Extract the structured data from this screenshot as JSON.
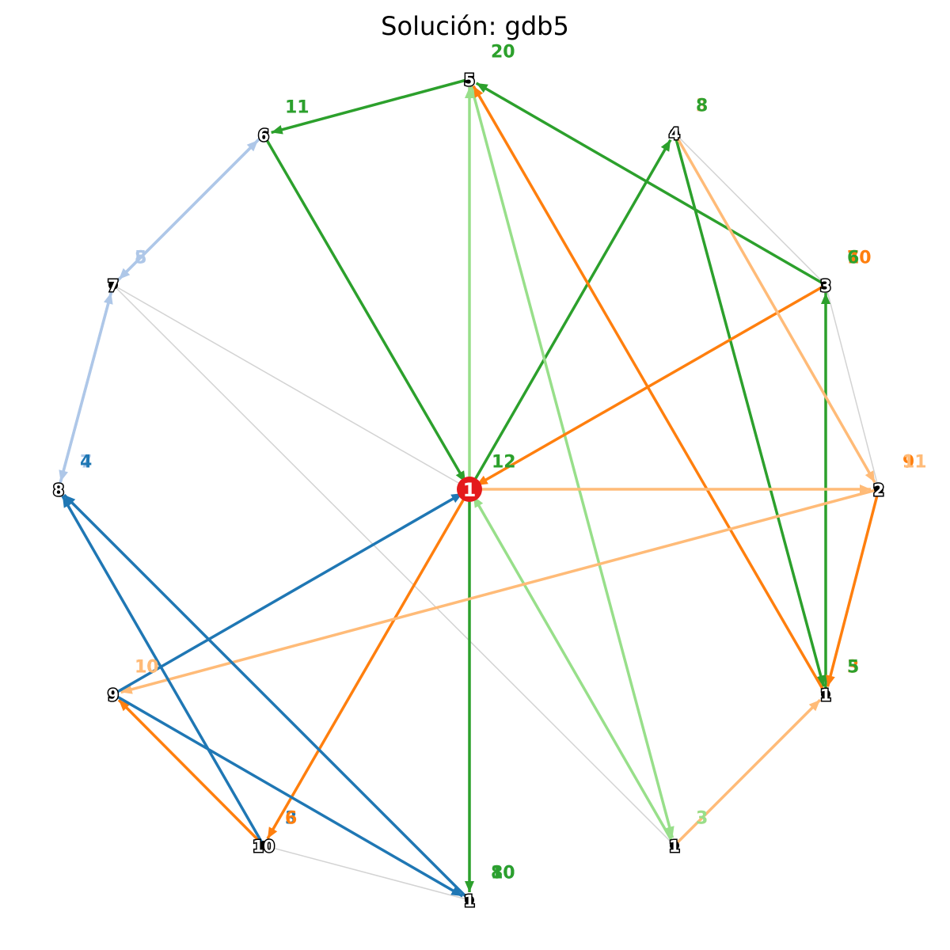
{
  "title": "Solución: gdb5",
  "colors": {
    "edge_base": "#d3d3d3",
    "route_dark_green": "#2ca02c",
    "route_light_green": "#98df8a",
    "route_orange": "#ff7f0e",
    "route_light_orange": "#ffbb78",
    "route_blue": "#1f77b4",
    "route_light_blue": "#aec7e8",
    "depot": "#e41a1c"
  },
  "nodes": [
    {
      "id": "n1",
      "label": "1",
      "depot": true
    },
    {
      "id": "n2",
      "label": "2"
    },
    {
      "id": "n3",
      "label": "3"
    },
    {
      "id": "n4",
      "label": "4"
    },
    {
      "id": "n5",
      "label": "5"
    },
    {
      "id": "n6",
      "label": "6"
    },
    {
      "id": "n7",
      "label": "7"
    },
    {
      "id": "n8",
      "label": "8"
    },
    {
      "id": "n9",
      "label": "9"
    },
    {
      "id": "n10",
      "label": "10"
    },
    {
      "id": "n11",
      "label": "1"
    },
    {
      "id": "n12",
      "label": "1"
    },
    {
      "id": "n13",
      "label": "1"
    }
  ],
  "base_edges": [
    [
      "n4",
      "n3"
    ],
    [
      "n3",
      "n2"
    ],
    [
      "n7",
      "n1"
    ],
    [
      "n7",
      "n12"
    ],
    [
      "n10",
      "n11"
    ]
  ],
  "routes": [
    {
      "color": "route_dark_green",
      "arcs": [
        [
          "n1",
          "n11"
        ],
        [
          "n1",
          "n4"
        ],
        [
          "n4",
          "n13"
        ],
        [
          "n13",
          "n3"
        ],
        [
          "n3",
          "n5"
        ],
        [
          "n5",
          "n6"
        ],
        [
          "n6",
          "n1"
        ]
      ]
    },
    {
      "color": "route_light_green",
      "arcs": [
        [
          "n1",
          "n5"
        ],
        [
          "n5",
          "n12"
        ],
        [
          "n12",
          "n1"
        ]
      ]
    },
    {
      "color": "route_orange",
      "arcs": [
        [
          "n3",
          "n1"
        ],
        [
          "n1",
          "n10"
        ],
        [
          "n10",
          "n9"
        ],
        [
          "n2",
          "n13"
        ],
        [
          "n13",
          "n5"
        ]
      ]
    },
    {
      "color": "route_light_orange",
      "arcs": [
        [
          "n1",
          "n2"
        ],
        [
          "n4",
          "n2"
        ],
        [
          "n2",
          "n9"
        ],
        [
          "n12",
          "n13"
        ]
      ]
    },
    {
      "color": "route_blue",
      "arcs": [
        [
          "n9",
          "n1"
        ],
        [
          "n9",
          "n11"
        ],
        [
          "n11",
          "n8"
        ],
        [
          "n10",
          "n8"
        ]
      ]
    },
    {
      "color": "route_light_blue",
      "arcs": [
        [
          "n8",
          "n7"
        ],
        [
          "n7",
          "n6"
        ],
        [
          "n6",
          "n7"
        ],
        [
          "n7",
          "n8"
        ]
      ]
    }
  ],
  "load_labels": [
    {
      "at": "n5",
      "text": "20",
      "color": "route_light_green"
    },
    {
      "at": "n5",
      "text": "20",
      "color": "route_dark_green"
    },
    {
      "at": "n6",
      "text": "11",
      "color": "route_light_blue"
    },
    {
      "at": "n6",
      "text": "11",
      "color": "route_dark_green"
    },
    {
      "at": "n4",
      "text": "3",
      "color": "route_light_orange"
    },
    {
      "at": "n4",
      "text": "8",
      "color": "route_dark_green"
    },
    {
      "at": "n3",
      "text": "7",
      "color": "route_orange"
    },
    {
      "at": "n3",
      "text": "10",
      "color": "route_orange"
    },
    {
      "at": "n3",
      "text": "6",
      "color": "route_dark_green"
    },
    {
      "at": "n7",
      "text": "5",
      "color": "route_light_blue"
    },
    {
      "at": "n7",
      "text": "8",
      "color": "route_light_blue"
    },
    {
      "at": "n8",
      "text": "7",
      "color": "route_light_blue"
    },
    {
      "at": "n8",
      "text": "4",
      "color": "route_blue"
    },
    {
      "at": "n1",
      "text": "12",
      "color": "route_light_green"
    },
    {
      "at": "n1",
      "text": "12",
      "color": "route_dark_green"
    },
    {
      "at": "n2",
      "text": "9",
      "color": "route_orange"
    },
    {
      "at": "n2",
      "text": "11",
      "color": "route_light_orange"
    },
    {
      "at": "n9",
      "text": "10",
      "color": "route_orange"
    },
    {
      "at": "n9",
      "text": "10",
      "color": "route_light_orange"
    },
    {
      "at": "n13",
      "text": "3",
      "color": "route_orange"
    },
    {
      "at": "n13",
      "text": "5",
      "color": "route_dark_green"
    },
    {
      "at": "n10",
      "text": "3",
      "color": "route_blue"
    },
    {
      "at": "n10",
      "text": "6",
      "color": "route_orange"
    },
    {
      "at": "n12",
      "text": "3",
      "color": "route_light_orange"
    },
    {
      "at": "n12",
      "text": "3",
      "color": "route_light_green"
    },
    {
      "at": "n11",
      "text": "8",
      "color": "route_dark_green"
    },
    {
      "at": "n11",
      "text": "10",
      "color": "route_blue"
    },
    {
      "at": "n11",
      "text": "10",
      "color": "route_dark_green"
    }
  ]
}
